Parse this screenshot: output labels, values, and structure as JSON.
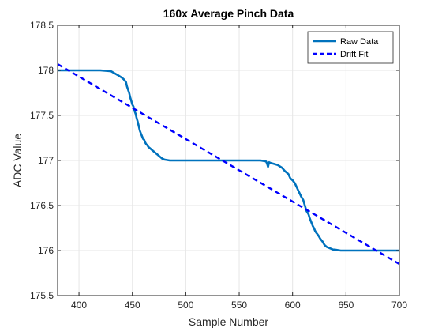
{
  "chart_data": {
    "type": "line",
    "title": "160x Average Pinch Data",
    "xlabel": "Sample Number",
    "ylabel": "ADC Value",
    "xlim": [
      380,
      700
    ],
    "ylim": [
      175.5,
      178.5
    ],
    "xticks": [
      400,
      450,
      500,
      550,
      600,
      650,
      700
    ],
    "yticks": [
      175.5,
      176,
      176.5,
      177,
      177.5,
      178,
      178.5
    ],
    "xtick_labels": [
      "400",
      "450",
      "500",
      "550",
      "600",
      "650",
      "700"
    ],
    "ytick_labels": [
      "175.5",
      "176",
      "176.5",
      "177",
      "177.5",
      "178",
      "178.5"
    ],
    "grid": true,
    "legend_position": "top-right",
    "series": [
      {
        "name": "Raw Data",
        "style": "solid",
        "color": "#0072BD",
        "x": [
          380,
          395,
          410,
          420,
          430,
          436,
          440,
          442,
          444,
          445,
          447,
          448,
          449,
          450,
          451,
          452,
          453,
          454,
          455,
          456,
          457,
          458,
          459,
          460,
          461,
          462,
          463,
          464,
          465,
          466,
          467,
          468,
          470,
          472,
          474,
          476,
          478,
          480,
          485,
          490,
          500,
          520,
          540,
          560,
          570,
          575,
          576,
          577,
          578,
          580,
          583,
          586,
          590,
          593,
          596,
          598,
          600,
          602,
          604,
          606,
          608,
          610,
          611,
          612,
          613,
          614,
          615,
          616,
          617,
          618,
          619,
          620,
          621,
          622,
          624,
          626,
          628,
          630,
          632,
          634,
          636,
          638,
          640,
          645,
          650,
          660,
          670,
          680,
          690,
          700
        ],
        "y": [
          178.0,
          178.0,
          178.0,
          178.0,
          177.99,
          177.95,
          177.92,
          177.9,
          177.87,
          177.82,
          177.75,
          177.7,
          177.66,
          177.62,
          177.6,
          177.55,
          177.52,
          177.47,
          177.43,
          177.38,
          177.33,
          177.3,
          177.27,
          177.24,
          177.23,
          177.2,
          177.18,
          177.17,
          177.15,
          177.14,
          177.13,
          177.12,
          177.1,
          177.08,
          177.06,
          177.04,
          177.02,
          177.01,
          177.0,
          177.0,
          177.0,
          177.0,
          177.0,
          177.0,
          177.0,
          176.99,
          176.97,
          176.93,
          176.98,
          176.97,
          176.96,
          176.95,
          176.92,
          176.88,
          176.85,
          176.8,
          176.78,
          176.75,
          176.7,
          176.65,
          176.6,
          176.56,
          176.52,
          176.48,
          176.44,
          176.42,
          176.4,
          176.36,
          176.33,
          176.3,
          176.27,
          176.25,
          176.22,
          176.2,
          176.17,
          176.13,
          176.1,
          176.06,
          176.04,
          176.03,
          176.02,
          176.01,
          176.01,
          176.0,
          176.0,
          176.0,
          176.0,
          176.0,
          176.0,
          176.0
        ]
      },
      {
        "name": "Drift Fit",
        "style": "dashed",
        "color": "#0000FF",
        "x": [
          380,
          700
        ],
        "y": [
          178.07,
          175.85
        ]
      }
    ]
  }
}
